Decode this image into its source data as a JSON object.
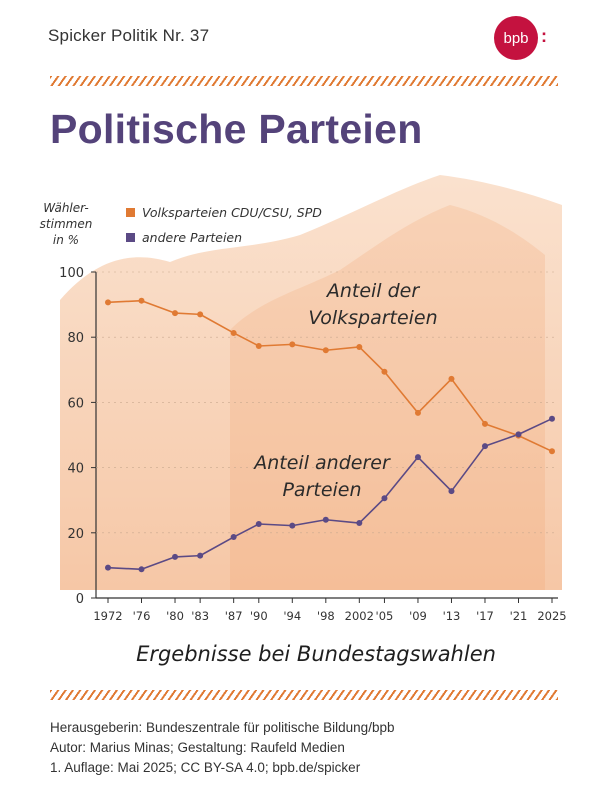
{
  "header": {
    "series": "Spicker Politik  Nr. 37",
    "logo": "bpb"
  },
  "title": "Politische Parteien",
  "colors": {
    "title": "#54437a",
    "accent": "#e07a33",
    "volks": "#e07a33",
    "andere": "#5b4a85",
    "logo": "#c4123f"
  },
  "chart_data": {
    "type": "line",
    "title": "",
    "xlabel": "Ergebnisse bei Bundestagswahlen",
    "ylabel_lines": [
      "Wähler-",
      "stimmen",
      "in %"
    ],
    "ylim": [
      0,
      100
    ],
    "yticks": [
      0,
      20,
      40,
      60,
      80,
      100
    ],
    "categories": [
      "1972",
      "'76",
      "'80",
      "'83",
      "'87",
      "'90",
      "'94",
      "'98",
      "2002",
      "'05",
      "'09",
      "'13",
      "'17",
      "'21",
      "2025"
    ],
    "x": [
      1972,
      1976,
      1980,
      1983,
      1987,
      1990,
      1994,
      1998,
      2002,
      2005,
      2009,
      2013,
      2017,
      2021,
      2025
    ],
    "legend_position": "top-left",
    "series": [
      {
        "name": "Volksparteien CDU/CSU, SPD",
        "values": [
          90.7,
          91.2,
          87.4,
          87.0,
          81.3,
          77.3,
          77.8,
          76.0,
          77.0,
          69.4,
          56.8,
          67.2,
          53.4,
          49.8,
          45.0
        ]
      },
      {
        "name": "andere Parteien",
        "values": [
          9.3,
          8.8,
          12.6,
          13.0,
          18.7,
          22.7,
          22.2,
          24.0,
          23.0,
          30.6,
          43.2,
          32.8,
          46.6,
          50.2,
          55.0
        ]
      }
    ],
    "annotations": [
      {
        "lines": [
          "Anteil der",
          "Volksparteien"
        ]
      },
      {
        "lines": [
          "Anteil anderer",
          "Parteien"
        ]
      }
    ]
  },
  "footer": [
    "Herausgeberin: Bundeszentrale für politische Bildung/bpb",
    "Autor: Marius Minas; Gestaltung: Raufeld Medien",
    "1. Auflage: Mai 2025; CC BY-SA 4.0; bpb.de/spicker"
  ]
}
